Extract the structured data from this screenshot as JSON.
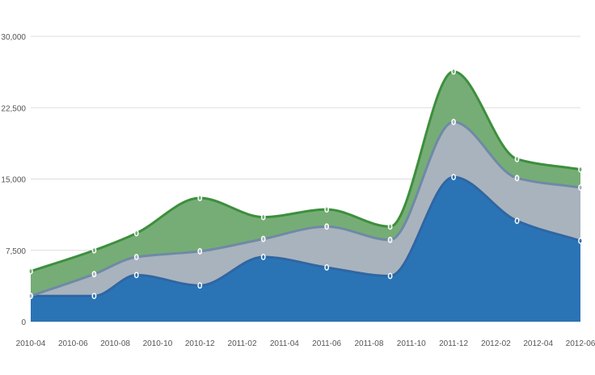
{
  "chart_data": {
    "type": "area",
    "stacked": true,
    "title": "",
    "xlabel": "",
    "ylabel": "",
    "ylim": [
      0,
      30000
    ],
    "y_ticks": [
      "0",
      "7,500",
      "15,000",
      "22,500",
      "30,000"
    ],
    "y_tick_values": [
      0,
      7500,
      15000,
      22500,
      30000
    ],
    "x_tick_labels": [
      "2010-04",
      "2010-06",
      "2010-08",
      "2010-10",
      "2010-12",
      "2011-02",
      "2011-04",
      "2011-06",
      "2011-08",
      "2011-10",
      "2011-12",
      "2012-02",
      "2012-04",
      "2012-06"
    ],
    "x": [
      "2010-04",
      "2010-07",
      "2010-09",
      "2010-12",
      "2011-03",
      "2011-06",
      "2011-09",
      "2011-12",
      "2012-03",
      "2012-06"
    ],
    "grid": "horizontal",
    "legend": "none",
    "series": [
      {
        "color": "#2a74b6",
        "line_color": "#2f66a3",
        "values": [
          2700,
          2700,
          4900,
          3800,
          6800,
          5700,
          4800,
          15200,
          10600,
          8500
        ]
      },
      {
        "color": "#a9b3bd",
        "line_color": "#6f8aa6",
        "values": [
          0,
          2300,
          1900,
          3600,
          1900,
          4300,
          3800,
          5800,
          4500,
          5600
        ]
      },
      {
        "color": "#76ad76",
        "line_color": "#3d8f3d",
        "values": [
          2600,
          2500,
          2500,
          5600,
          2300,
          1800,
          1400,
          5300,
          2000,
          1900
        ]
      }
    ]
  }
}
